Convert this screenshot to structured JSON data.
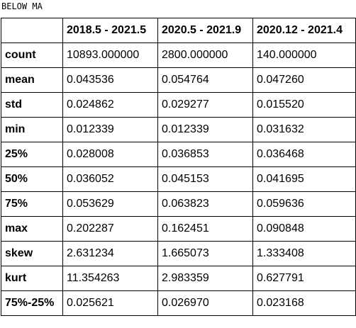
{
  "caption": "BELOW MA",
  "table": {
    "columns": [
      "",
      "2018.5 - 2021.5",
      "2020.5 - 2021.9",
      "2020.12 - 2021.4"
    ],
    "rows": [
      {
        "label": "count",
        "values": [
          "10893.000000",
          "2800.000000",
          "140.000000"
        ]
      },
      {
        "label": "mean",
        "values": [
          "0.043536",
          "0.054764",
          "0.047260"
        ]
      },
      {
        "label": "std",
        "values": [
          "0.024862",
          "0.029277",
          "0.015520"
        ]
      },
      {
        "label": "min",
        "values": [
          "0.012339",
          "0.012339",
          "0.031632"
        ]
      },
      {
        "label": "25%",
        "values": [
          "0.028008",
          "0.036853",
          "0.036468"
        ]
      },
      {
        "label": "50%",
        "values": [
          "0.036052",
          "0.045153",
          "0.041695"
        ]
      },
      {
        "label": "75%",
        "values": [
          "0.053629",
          "0.063823",
          "0.059636"
        ]
      },
      {
        "label": "max",
        "values": [
          "0.202287",
          "0.162451",
          "0.090848"
        ]
      },
      {
        "label": "skew",
        "values": [
          "2.631234",
          "1.665073",
          "1.333408"
        ]
      },
      {
        "label": "kurt",
        "values": [
          "11.354263",
          "2.983359",
          "0.627791"
        ]
      },
      {
        "label": "75%-25%",
        "values": [
          "0.025621",
          "0.026970",
          "0.023168"
        ]
      }
    ]
  }
}
